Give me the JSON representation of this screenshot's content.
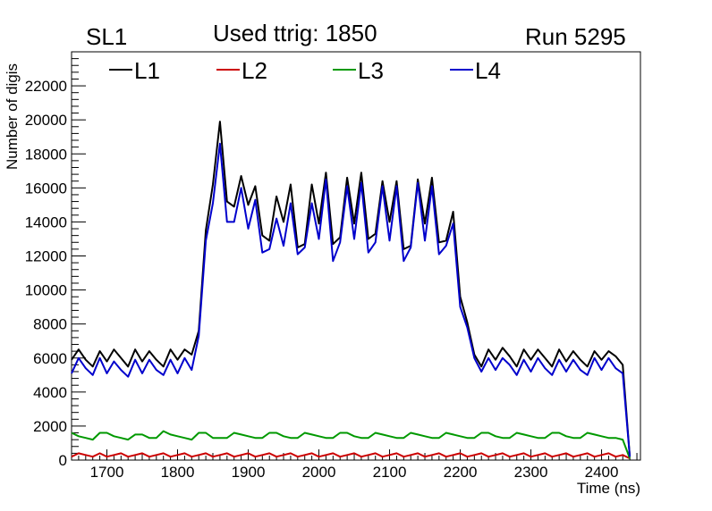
{
  "header": {
    "left_label": "SL1",
    "title": "Used ttrig: 1850",
    "right_label": "Run 5295"
  },
  "chart_data": {
    "type": "line",
    "title": "Used ttrig: 1850",
    "xlabel": "Time (ns)",
    "ylabel": "Number of digis",
    "xlim": [
      1650,
      2455
    ],
    "ylim": [
      0,
      24000
    ],
    "xticks": [
      1700,
      1800,
      1900,
      2000,
      2100,
      2200,
      2300,
      2400
    ],
    "yticks": [
      0,
      2000,
      4000,
      6000,
      8000,
      10000,
      12000,
      14000,
      16000,
      18000,
      20000,
      22000
    ],
    "grid": false,
    "legend_position": "top",
    "x_start": 1650,
    "x_step": 10,
    "colors": {
      "L1": "#000000",
      "L2": "#cc0000",
      "L3": "#009900",
      "L4": "#0000cc"
    },
    "series": [
      {
        "name": "L1",
        "values": [
          5900,
          6500,
          5900,
          5500,
          6400,
          5800,
          6500,
          6000,
          5500,
          6500,
          5800,
          6400,
          5900,
          5500,
          6500,
          5900,
          6500,
          6200,
          7600,
          13500,
          16200,
          19900,
          15200,
          14900,
          16700,
          15000,
          16100,
          13200,
          12900,
          15500,
          14000,
          16200,
          12500,
          12700,
          16200,
          13900,
          16900,
          12700,
          13100,
          16600,
          13900,
          16900,
          13000,
          13300,
          16400,
          14000,
          16400,
          12400,
          12600,
          16500,
          13900,
          16600,
          12800,
          12900,
          14600,
          9600,
          8100,
          6200,
          5500,
          6500,
          5900,
          6600,
          6100,
          5500,
          6500,
          5900,
          6500,
          6000,
          5500,
          6500,
          5800,
          6400,
          5900,
          5500,
          6400,
          5900,
          6400,
          6100,
          5600,
          200
        ]
      },
      {
        "name": "L2",
        "values": [
          200,
          400,
          300,
          200,
          400,
          200,
          300,
          400,
          200,
          300,
          400,
          200,
          300,
          400,
          200,
          300,
          400,
          200,
          300,
          400,
          200,
          300,
          400,
          200,
          300,
          400,
          200,
          300,
          400,
          200,
          300,
          400,
          200,
          300,
          400,
          200,
          300,
          400,
          200,
          300,
          400,
          200,
          300,
          400,
          200,
          300,
          400,
          200,
          300,
          400,
          200,
          300,
          400,
          200,
          300,
          400,
          200,
          300,
          400,
          200,
          300,
          400,
          200,
          300,
          400,
          200,
          300,
          400,
          200,
          300,
          400,
          200,
          300,
          400,
          200,
          300,
          400,
          200,
          300,
          100
        ]
      },
      {
        "name": "L3",
        "values": [
          1600,
          1400,
          1300,
          1200,
          1600,
          1600,
          1400,
          1300,
          1200,
          1500,
          1500,
          1300,
          1300,
          1700,
          1500,
          1400,
          1300,
          1200,
          1600,
          1600,
          1300,
          1300,
          1300,
          1600,
          1500,
          1400,
          1300,
          1300,
          1600,
          1600,
          1400,
          1300,
          1300,
          1600,
          1500,
          1400,
          1300,
          1300,
          1600,
          1600,
          1400,
          1300,
          1300,
          1600,
          1500,
          1400,
          1300,
          1300,
          1600,
          1500,
          1400,
          1300,
          1300,
          1600,
          1500,
          1400,
          1300,
          1300,
          1600,
          1600,
          1400,
          1300,
          1300,
          1600,
          1500,
          1400,
          1300,
          1300,
          1600,
          1600,
          1400,
          1300,
          1300,
          1600,
          1500,
          1400,
          1300,
          1300,
          1200,
          100
        ]
      },
      {
        "name": "L4",
        "values": [
          5100,
          6000,
          5400,
          5000,
          6000,
          5100,
          5800,
          5300,
          4900,
          5900,
          5100,
          5900,
          5300,
          5000,
          5900,
          5100,
          6000,
          5300,
          7300,
          12900,
          15100,
          18600,
          14000,
          14000,
          16000,
          13600,
          15300,
          12200,
          12400,
          14200,
          12600,
          15100,
          12100,
          12500,
          15100,
          13000,
          16500,
          11700,
          12800,
          16100,
          13000,
          16300,
          12200,
          12800,
          16100,
          12900,
          16100,
          11700,
          12500,
          16300,
          12900,
          16100,
          12100,
          12600,
          13900,
          9000,
          7800,
          6000,
          5200,
          6000,
          5300,
          6000,
          5600,
          5000,
          5900,
          5200,
          6000,
          5400,
          5000,
          5900,
          5200,
          5900,
          5300,
          5000,
          6000,
          5300,
          6000,
          5400,
          5100,
          200
        ]
      }
    ]
  }
}
